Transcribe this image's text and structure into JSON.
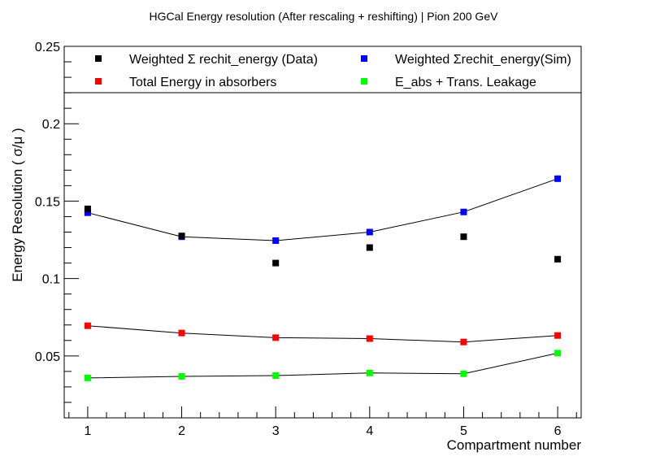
{
  "chart_data": {
    "type": "scatter",
    "title": "HGCal Energy resolution (After rescaling + reshifting) | Pion 200 GeV",
    "xlabel": "Compartment number",
    "ylabel": "Energy Resolution ( σ/μ )",
    "xlim": [
      0.75,
      6.25
    ],
    "ylim": [
      0.01,
      0.25
    ],
    "x_ticks": [
      1,
      2,
      3,
      4,
      5,
      6
    ],
    "y_ticks": [
      0.05,
      0.1,
      0.15,
      0.2,
      0.25
    ],
    "y_tick_labels": [
      "0.05",
      "0.1",
      "0.15",
      "0.2",
      "0.25"
    ],
    "x": [
      1,
      2,
      3,
      4,
      5,
      6
    ],
    "legend_position": "top",
    "series": [
      {
        "name": "Weighted Σ rechit_energy (Data)",
        "color": "#000000",
        "line": false,
        "values": [
          0.145,
          0.1275,
          0.11,
          0.12,
          0.127,
          0.1125
        ]
      },
      {
        "name": "Weighted Σrechit_energy(Sim)",
        "color": "#0000ff",
        "line": true,
        "values": [
          0.1425,
          0.127,
          0.1245,
          0.13,
          0.143,
          0.1645
        ]
      },
      {
        "name": "Total Energy in absorbers",
        "color": "#ff0000",
        "line": true,
        "values": [
          0.0695,
          0.0648,
          0.0618,
          0.0612,
          0.059,
          0.0632
        ]
      },
      {
        "name": "E_abs + Trans. Leakage",
        "color": "#00ff00",
        "line": true,
        "values": [
          0.0358,
          0.0368,
          0.0373,
          0.039,
          0.0385,
          0.0518
        ]
      }
    ]
  }
}
